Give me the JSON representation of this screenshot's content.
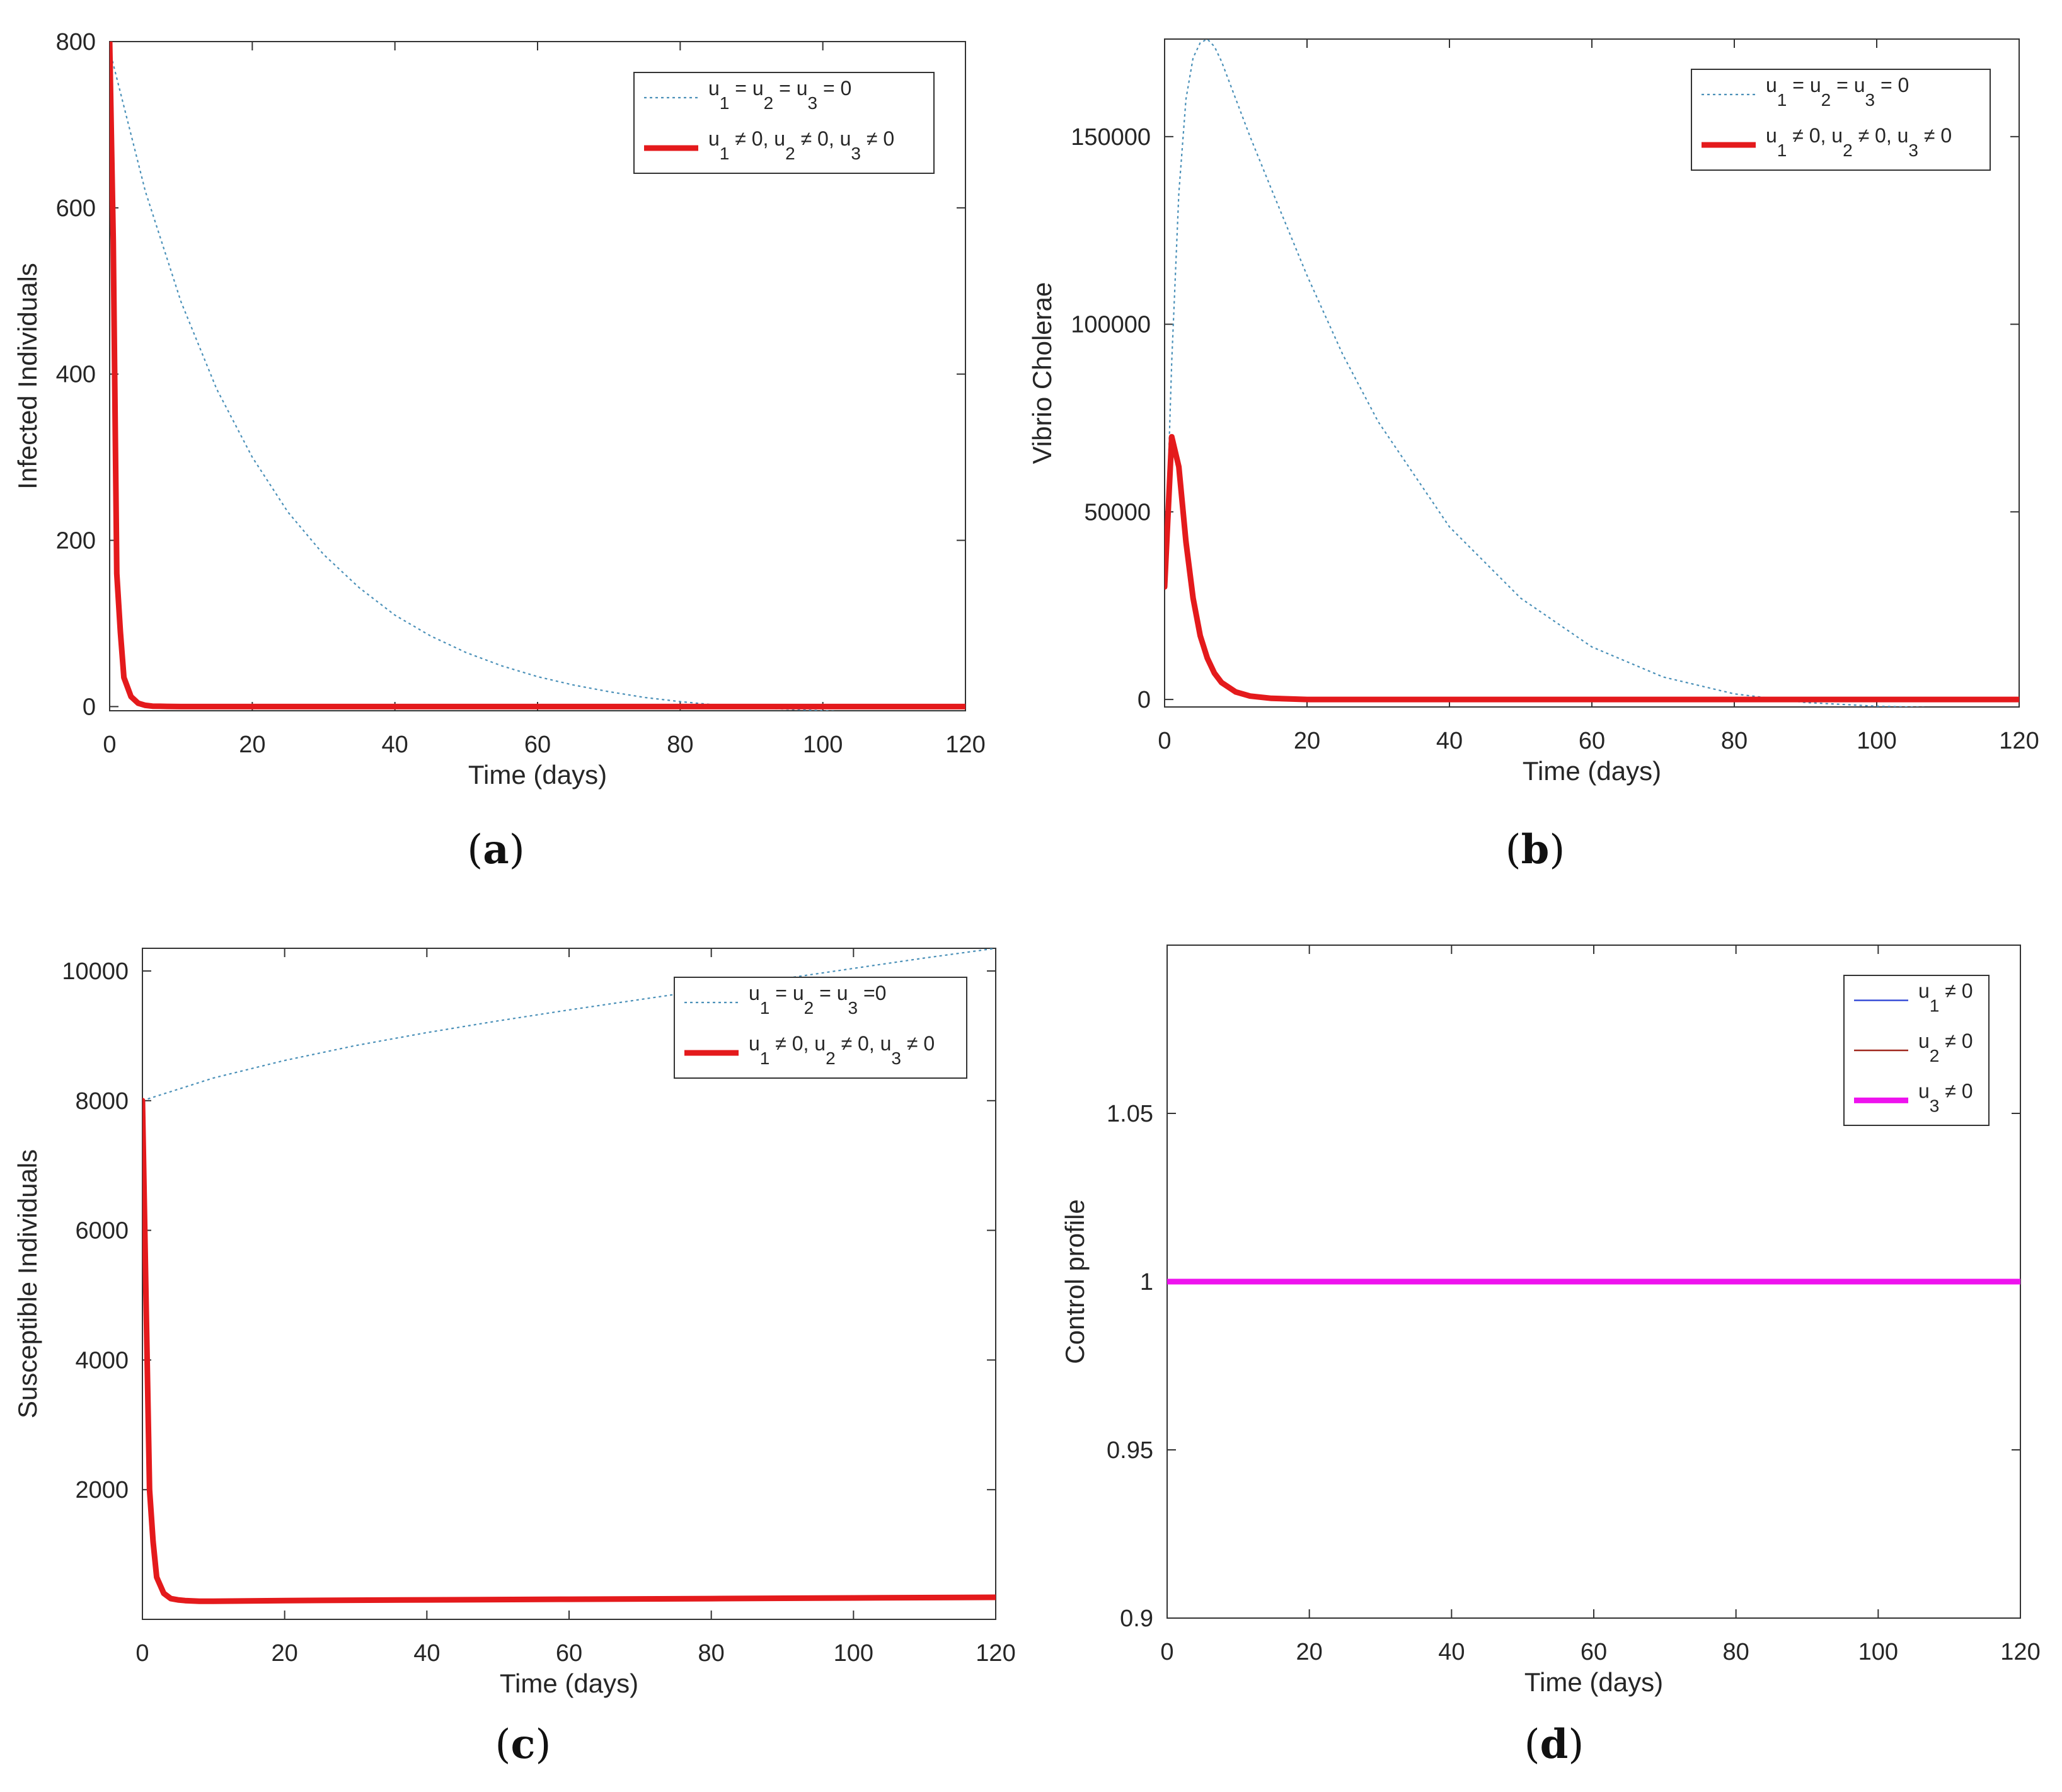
{
  "colors": {
    "uncontrolled": "#4a90b8",
    "controlled": "#e41a1c",
    "u1": "#3a4fd8",
    "u2": "#a0281e",
    "u3": "#ee12ee",
    "axis": "#262626",
    "background": "#ffffff"
  },
  "chart_data": [
    {
      "id": "a",
      "type": "line",
      "caption": "(a)",
      "xlabel": "Time (days)",
      "ylabel": "Infected Individuals",
      "xlim": [
        0,
        120
      ],
      "ylim": [
        -5,
        800
      ],
      "xticks": [
        0,
        20,
        40,
        60,
        80,
        100,
        120
      ],
      "yticks": [
        0,
        200,
        400,
        600,
        800
      ],
      "legend_position": "top-right",
      "series": [
        {
          "name": "uncontrolled",
          "label": {
            "p1": "u",
            "s1": "1",
            "p2": " = u",
            "s2": "2",
            "p3": " = u",
            "s3": "3",
            "p4": " = 0"
          },
          "style": "dotted",
          "color_key": "uncontrolled",
          "x": [
            0,
            5,
            10,
            15,
            20,
            25,
            30,
            35,
            40,
            45,
            50,
            55,
            60,
            65,
            70,
            75,
            80,
            85,
            90,
            95,
            100,
            105,
            110,
            115,
            120
          ],
          "y": [
            790,
            620,
            487,
            382,
            300,
            234,
            183,
            143,
            110,
            85,
            65,
            49,
            36,
            26,
            18,
            11,
            6,
            2,
            -1,
            -3,
            -5,
            -7,
            -8,
            -9,
            -10
          ]
        },
        {
          "name": "controlled",
          "label": {
            "p1": "u",
            "s1": "1",
            "p2": " ≠ 0, u",
            "s2": "2",
            "p3": " ≠ 0, u",
            "s3": "3",
            "p4": " ≠ 0"
          },
          "style": "solid-thick",
          "color_key": "controlled",
          "x": [
            0,
            0.5,
            1,
            1.5,
            2,
            3,
            4,
            5,
            6,
            8,
            10,
            20,
            40,
            60,
            80,
            100,
            120
          ],
          "y": [
            800,
            560,
            160,
            90,
            35,
            12,
            4,
            1.5,
            0.5,
            0.2,
            0,
            0,
            0,
            0,
            0,
            0,
            0
          ]
        }
      ]
    },
    {
      "id": "b",
      "type": "line",
      "caption": "(b)",
      "xlabel": "Time (days)",
      "ylabel": "Vibrio Cholerae",
      "xlim": [
        0,
        120
      ],
      "ylim": [
        -2000,
        176000
      ],
      "xticks": [
        0,
        20,
        40,
        60,
        80,
        100,
        120
      ],
      "yticks": [
        0,
        50000,
        100000,
        150000
      ],
      "legend_position": "top-right",
      "series": [
        {
          "name": "uncontrolled",
          "label": {
            "p1": "u",
            "s1": "1",
            "p2": " = u",
            "s2": "2",
            "p3": " = u",
            "s3": "3",
            "p4": " = 0"
          },
          "style": "dotted",
          "color_key": "uncontrolled",
          "x": [
            0,
            1,
            2,
            3,
            4,
            5,
            6,
            7,
            8,
            10,
            12,
            15,
            20,
            25,
            30,
            40,
            50,
            60,
            70,
            80,
            90,
            100,
            110,
            120
          ],
          "y": [
            30000,
            90000,
            135000,
            160000,
            171000,
            175000,
            176000,
            174000,
            170000,
            160000,
            150000,
            136000,
            113000,
            92000,
            74000,
            46000,
            27000,
            14000,
            6000,
            1500,
            -800,
            -1800,
            -2300,
            -2700
          ]
        },
        {
          "name": "controlled",
          "label": {
            "p1": "u",
            "s1": "1",
            "p2": " ≠ 0, u",
            "s2": "2",
            "p3": " ≠ 0, u",
            "s3": "3",
            "p4": " ≠ 0"
          },
          "style": "solid-thick",
          "color_key": "controlled",
          "x": [
            0,
            1,
            2,
            3,
            4,
            5,
            6,
            7,
            8,
            10,
            12,
            15,
            20,
            30,
            60,
            90,
            120
          ],
          "y": [
            30000,
            70000,
            62000,
            42000,
            27000,
            17000,
            11000,
            7000,
            4500,
            2000,
            900,
            300,
            0,
            0,
            0,
            0,
            0
          ]
        }
      ]
    },
    {
      "id": "c",
      "type": "line",
      "caption": "(c)",
      "xlabel": "Time (days)",
      "ylabel": "Susceptible Individuals",
      "xlim": [
        0,
        120
      ],
      "ylim": [
        0,
        10350
      ],
      "xticks": [
        0,
        20,
        40,
        60,
        80,
        100,
        120
      ],
      "yticks": [
        2000,
        4000,
        6000,
        8000,
        10000
      ],
      "legend_position": "top-right",
      "series": [
        {
          "name": "uncontrolled",
          "label": {
            "p1": "u",
            "s1": "1",
            "p2": " = u",
            "s2": "2",
            "p3": " = u",
            "s3": "3",
            "p4": " =0"
          },
          "style": "dotted",
          "color_key": "uncontrolled",
          "x": [
            0,
            10,
            20,
            30,
            40,
            50,
            60,
            70,
            80,
            90,
            100,
            110,
            120
          ],
          "y": [
            8000,
            8350,
            8620,
            8850,
            9050,
            9230,
            9400,
            9560,
            9720,
            9880,
            10040,
            10200,
            10350
          ]
        },
        {
          "name": "controlled",
          "label": {
            "p1": "u",
            "s1": "1",
            "p2": " ≠ 0, u",
            "s2": "2",
            "p3": " ≠ 0, u",
            "s3": "3",
            "p4": " ≠ 0"
          },
          "style": "solid-thick",
          "color_key": "controlled",
          "x": [
            0,
            0.5,
            1,
            1.5,
            2,
            3,
            4,
            5,
            6,
            8,
            10,
            20,
            40,
            60,
            80,
            100,
            120
          ],
          "y": [
            8000,
            5000,
            2000,
            1200,
            650,
            400,
            320,
            300,
            290,
            280,
            280,
            290,
            300,
            310,
            320,
            330,
            340
          ]
        }
      ]
    },
    {
      "id": "d",
      "type": "line",
      "caption": "(d)",
      "xlabel": "Time (days)",
      "ylabel": "Control profile",
      "xlim": [
        0,
        120
      ],
      "ylim": [
        0.9,
        1.1
      ],
      "xticks": [
        0,
        20,
        40,
        60,
        80,
        100,
        120
      ],
      "yticks": [
        0.9,
        0.95,
        1,
        1.05
      ],
      "legend_position": "top-right",
      "series": [
        {
          "name": "u1",
          "label": {
            "p1": "u",
            "s1": "1",
            "p2": " ≠ 0"
          },
          "style": "solid-thin",
          "color_key": "u1",
          "x": [
            0,
            120
          ],
          "y": [
            1,
            1
          ]
        },
        {
          "name": "u2",
          "label": {
            "p1": "u",
            "s1": "2",
            "p2": " ≠ 0"
          },
          "style": "solid-thin",
          "color_key": "u2",
          "x": [
            0,
            120
          ],
          "y": [
            1,
            1
          ]
        },
        {
          "name": "u3",
          "label": {
            "p1": "u",
            "s1": "3",
            "p2": " ≠ 0"
          },
          "style": "solid-thick",
          "color_key": "u3",
          "x": [
            0,
            120
          ],
          "y": [
            1,
            1
          ]
        }
      ]
    }
  ]
}
